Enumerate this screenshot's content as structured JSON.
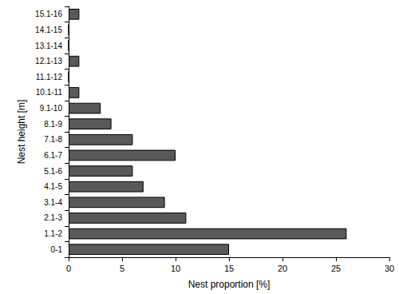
{
  "chart_data": {
    "type": "bar",
    "orientation": "horizontal",
    "categories": [
      "0-1",
      "1.1-2",
      "2.1-3",
      "3.1-4",
      "4.1-5",
      "5.1-6",
      "6.1-7",
      "7.1-8",
      "8.1-9",
      "9.1-10",
      "10.1-11",
      "11.1-12",
      "12.1-13",
      "13.1-14",
      "14.1-15",
      "15.1-16"
    ],
    "values": [
      15,
      26,
      11,
      9,
      7,
      6,
      10,
      6,
      4,
      3,
      1,
      0,
      1,
      0,
      0,
      1
    ],
    "color": "#595959",
    "x_label": "Nest proportion [%]",
    "y_label": "Nest height [m]",
    "xlim": [
      0,
      30
    ],
    "xticks": [
      0,
      5,
      10,
      15,
      20,
      25,
      30
    ],
    "grid": false
  }
}
